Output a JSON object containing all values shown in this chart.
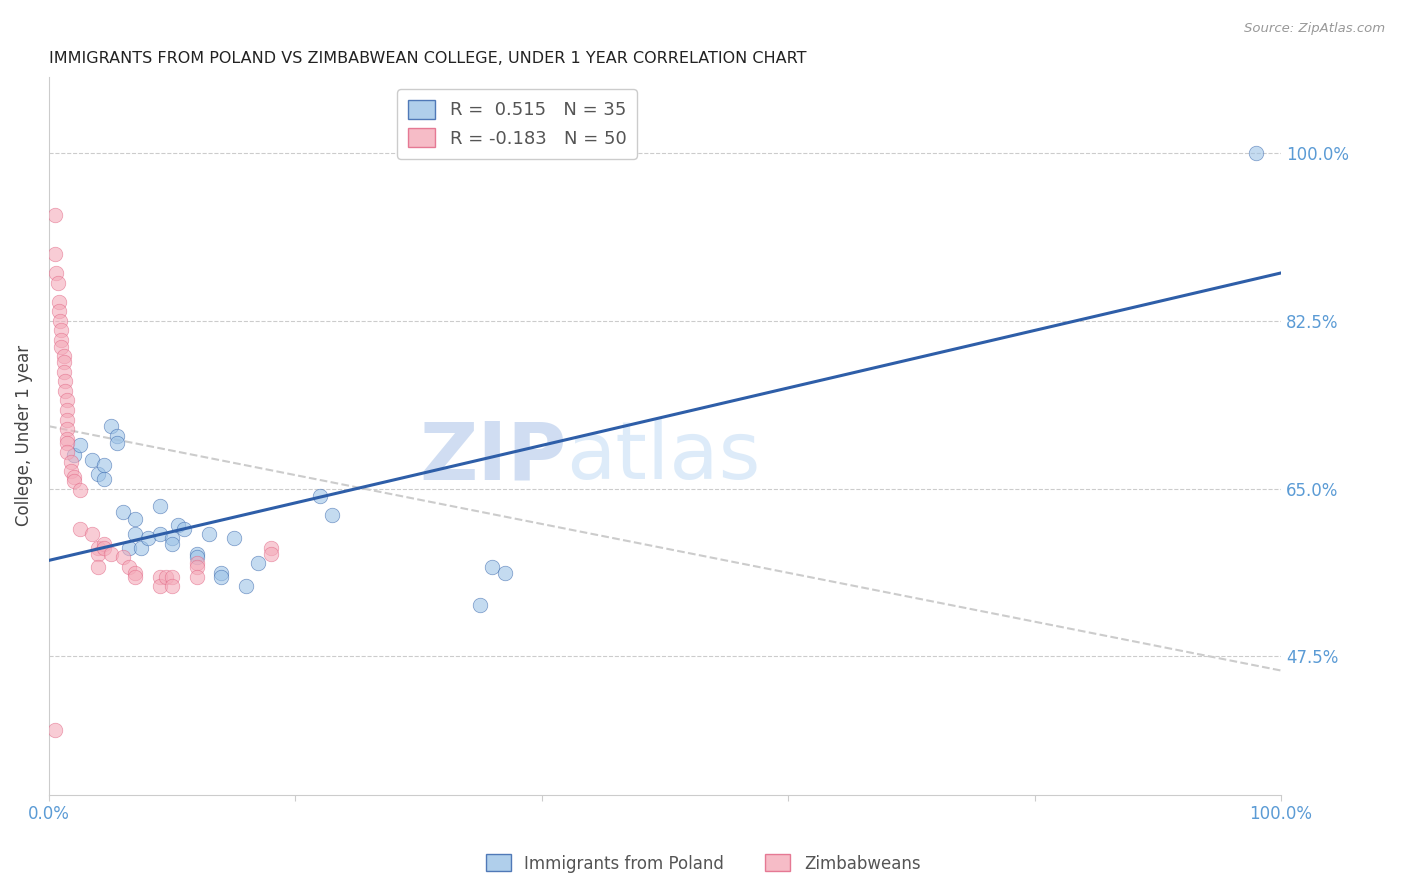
{
  "title": "IMMIGRANTS FROM POLAND VS ZIMBABWEAN COLLEGE, UNDER 1 YEAR CORRELATION CHART",
  "source": "Source: ZipAtlas.com",
  "ylabel": "College, Under 1 year",
  "yticks": [
    0.475,
    0.65,
    0.825,
    1.0
  ],
  "ytick_labels": [
    "47.5%",
    "65.0%",
    "82.5%",
    "100.0%"
  ],
  "xmin": 0.0,
  "xmax": 1.0,
  "ymin": 0.33,
  "ymax": 1.08,
  "legend_r1": "R =  0.515",
  "legend_n1": "N = 35",
  "legend_r2": "R = -0.183",
  "legend_n2": "N = 50",
  "blue_color": "#9DC3E6",
  "pink_color": "#F4ABBA",
  "line_blue": "#2E5EA8",
  "line_pink": "#E06080",
  "watermark_zip": "ZIP",
  "watermark_atlas": "atlas",
  "blue_points_x": [
    0.02,
    0.025,
    0.035,
    0.04,
    0.045,
    0.045,
    0.05,
    0.055,
    0.055,
    0.06,
    0.065,
    0.07,
    0.07,
    0.075,
    0.08,
    0.09,
    0.09,
    0.1,
    0.1,
    0.105,
    0.11,
    0.12,
    0.12,
    0.13,
    0.14,
    0.14,
    0.15,
    0.16,
    0.17,
    0.22,
    0.23,
    0.35,
    0.36,
    0.37,
    0.98
  ],
  "blue_points_y": [
    0.685,
    0.695,
    0.68,
    0.665,
    0.66,
    0.675,
    0.715,
    0.705,
    0.698,
    0.625,
    0.588,
    0.602,
    0.618,
    0.588,
    0.598,
    0.632,
    0.602,
    0.598,
    0.592,
    0.612,
    0.608,
    0.582,
    0.578,
    0.602,
    0.562,
    0.558,
    0.598,
    0.548,
    0.572,
    0.642,
    0.622,
    0.528,
    0.568,
    0.562,
    1.0
  ],
  "pink_points_x": [
    0.005,
    0.005,
    0.006,
    0.007,
    0.008,
    0.008,
    0.009,
    0.01,
    0.01,
    0.01,
    0.012,
    0.012,
    0.012,
    0.013,
    0.013,
    0.015,
    0.015,
    0.015,
    0.015,
    0.015,
    0.015,
    0.015,
    0.018,
    0.018,
    0.02,
    0.02,
    0.025,
    0.025,
    0.035,
    0.04,
    0.04,
    0.04,
    0.045,
    0.045,
    0.05,
    0.06,
    0.065,
    0.07,
    0.07,
    0.09,
    0.09,
    0.095,
    0.1,
    0.1,
    0.12,
    0.12,
    0.12,
    0.18,
    0.18,
    0.005
  ],
  "pink_points_y": [
    0.935,
    0.895,
    0.875,
    0.865,
    0.845,
    0.835,
    0.825,
    0.815,
    0.805,
    0.798,
    0.788,
    0.782,
    0.772,
    0.762,
    0.752,
    0.742,
    0.732,
    0.722,
    0.712,
    0.702,
    0.698,
    0.688,
    0.678,
    0.668,
    0.662,
    0.658,
    0.648,
    0.608,
    0.602,
    0.588,
    0.582,
    0.568,
    0.592,
    0.588,
    0.582,
    0.578,
    0.568,
    0.562,
    0.558,
    0.558,
    0.548,
    0.558,
    0.558,
    0.548,
    0.572,
    0.568,
    0.558,
    0.588,
    0.582,
    0.398
  ],
  "blue_line_x": [
    0.0,
    1.0
  ],
  "blue_line_y": [
    0.575,
    0.875
  ],
  "pink_line_x": [
    0.0,
    1.0
  ],
  "pink_line_y": [
    0.715,
    0.46
  ]
}
